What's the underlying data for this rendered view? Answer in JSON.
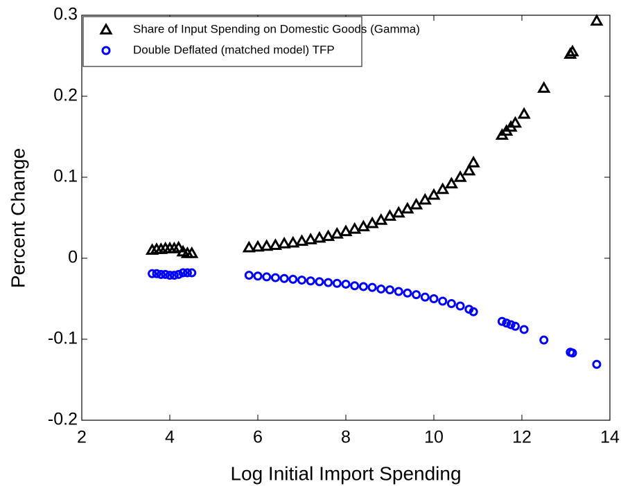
{
  "chart_data": {
    "type": "scatter",
    "x_label": "Log Initial Import Spending",
    "y_label": "Percent Change",
    "x": [
      3.6,
      3.7,
      3.8,
      3.9,
      4.0,
      4.1,
      4.2,
      4.3,
      4.4,
      4.5,
      5.8,
      6.0,
      6.2,
      6.4,
      6.6,
      6.8,
      7.0,
      7.2,
      7.4,
      7.6,
      7.8,
      8.0,
      8.2,
      8.4,
      8.6,
      8.8,
      9.0,
      9.2,
      9.4,
      9.6,
      9.8,
      10.0,
      10.2,
      10.4,
      10.6,
      10.8,
      10.9,
      11.55,
      11.65,
      11.75,
      11.85,
      12.05,
      12.5,
      13.1,
      13.15,
      13.7
    ],
    "series": [
      {
        "name": "Share of Input Spending on Domestic Goods (Gamma)",
        "color": "#000000",
        "marker": "triangle",
        "values": [
          0.01,
          0.011,
          0.011,
          0.012,
          0.012,
          0.012,
          0.013,
          0.008,
          0.006,
          0.006,
          0.013,
          0.014,
          0.015,
          0.016,
          0.018,
          0.019,
          0.021,
          0.023,
          0.025,
          0.027,
          0.03,
          0.033,
          0.036,
          0.039,
          0.043,
          0.047,
          0.052,
          0.056,
          0.061,
          0.066,
          0.072,
          0.078,
          0.085,
          0.092,
          0.1,
          0.108,
          0.118,
          0.152,
          0.157,
          0.162,
          0.167,
          0.178,
          0.21,
          0.252,
          0.255,
          0.293
        ]
      },
      {
        "name": "Double Deflated (matched model) TFP",
        "color": "#0000ff",
        "marker": "circle",
        "values": [
          -0.019,
          -0.019,
          -0.02,
          -0.02,
          -0.021,
          -0.021,
          -0.02,
          -0.018,
          -0.018,
          -0.018,
          -0.021,
          -0.022,
          -0.023,
          -0.024,
          -0.025,
          -0.026,
          -0.027,
          -0.028,
          -0.029,
          -0.03,
          -0.031,
          -0.032,
          -0.034,
          -0.035,
          -0.036,
          -0.038,
          -0.039,
          -0.041,
          -0.043,
          -0.045,
          -0.048,
          -0.05,
          -0.053,
          -0.056,
          -0.059,
          -0.063,
          -0.066,
          -0.078,
          -0.08,
          -0.082,
          -0.084,
          -0.088,
          -0.101,
          -0.116,
          -0.117,
          -0.131
        ]
      }
    ],
    "xlim": [
      2,
      14
    ],
    "xticks": [
      2,
      4,
      6,
      8,
      10,
      12,
      14
    ],
    "ylim": [
      -0.2,
      0.3
    ],
    "yticks": [
      -0.2,
      -0.1,
      0,
      0.1,
      0.2,
      0.3
    ],
    "legend": "upper left"
  }
}
